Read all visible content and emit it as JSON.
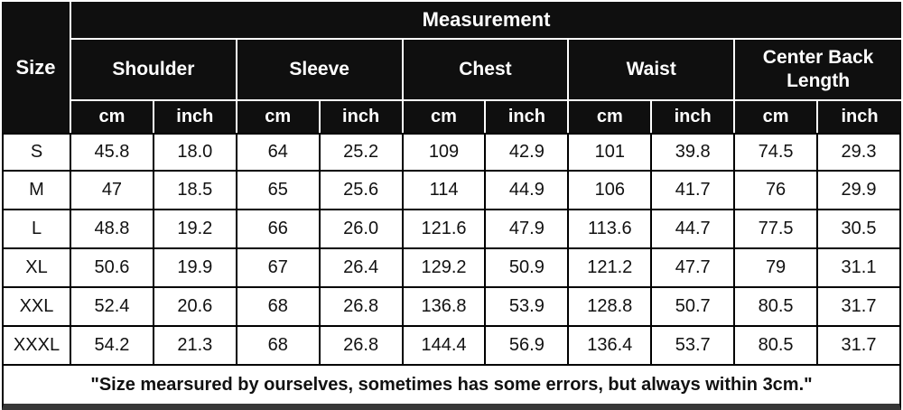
{
  "chart_data": {
    "type": "table",
    "title": "Measurement",
    "corner_header": "Size",
    "group_headers": [
      "Shoulder",
      "Sleeve",
      "Chest",
      "Waist",
      "Center Back Length"
    ],
    "unit_headers": [
      "cm",
      "inch",
      "cm",
      "inch",
      "cm",
      "inch",
      "cm",
      "inch",
      "cm",
      "inch"
    ],
    "rows": [
      {
        "size": "S",
        "values": [
          "45.8",
          "18.0",
          "64",
          "25.2",
          "109",
          "42.9",
          "101",
          "39.8",
          "74.5",
          "29.3"
        ]
      },
      {
        "size": "M",
        "values": [
          "47",
          "18.5",
          "65",
          "25.6",
          "114",
          "44.9",
          "106",
          "41.7",
          "76",
          "29.9"
        ]
      },
      {
        "size": "L",
        "values": [
          "48.8",
          "19.2",
          "66",
          "26.0",
          "121.6",
          "47.9",
          "113.6",
          "44.7",
          "77.5",
          "30.5"
        ]
      },
      {
        "size": "XL",
        "values": [
          "50.6",
          "19.9",
          "67",
          "26.4",
          "129.2",
          "50.9",
          "121.2",
          "47.7",
          "79",
          "31.1"
        ]
      },
      {
        "size": "XXL",
        "values": [
          "52.4",
          "20.6",
          "68",
          "26.8",
          "136.8",
          "53.9",
          "128.8",
          "50.7",
          "80.5",
          "31.7"
        ]
      },
      {
        "size": "XXXL",
        "values": [
          "54.2",
          "21.3",
          "68",
          "26.8",
          "144.4",
          "56.9",
          "136.4",
          "53.7",
          "80.5",
          "31.7"
        ]
      }
    ],
    "footnote": "\"Size mearsured by ourselves, sometimes has some errors, but always within 3cm.\"",
    "layout": {
      "header_style": "black-bg-white-text",
      "grid": "on",
      "units_per_group": 2
    },
    "colors": {
      "header_bg": "#0f0f0f",
      "header_text": "#ffffff",
      "grid_line": "#000000",
      "header_divider": "#ffffff",
      "cell_bg": "#ffffff",
      "body_text": "#111111",
      "bottom_bar": "#373737"
    }
  }
}
